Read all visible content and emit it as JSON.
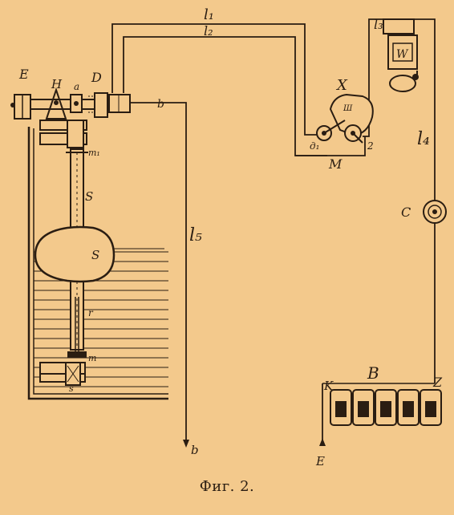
{
  "caption": "Фиг. 2.",
  "colors": {
    "paper": "#f3c98c",
    "ink": "#2a1d12"
  },
  "labels": {
    "l1": "l₁",
    "l2": "l₂",
    "l3": "l₃",
    "l4": "l₄",
    "l5": "l₅",
    "E": "E",
    "H": "H",
    "a": "a",
    "D": "D",
    "b_small": "b",
    "X": "X",
    "W": "W",
    "Sh": "Ш",
    "M": "M",
    "d1": "д₁",
    "z2": "2",
    "C": "C",
    "S_tube": "S",
    "S_float": "S",
    "r": "r",
    "m": "m",
    "m1": "m₁",
    "s_bottom": "s",
    "b_out": "b",
    "K": "K",
    "B": "B",
    "Z": "Z",
    "E_out": "E"
  }
}
